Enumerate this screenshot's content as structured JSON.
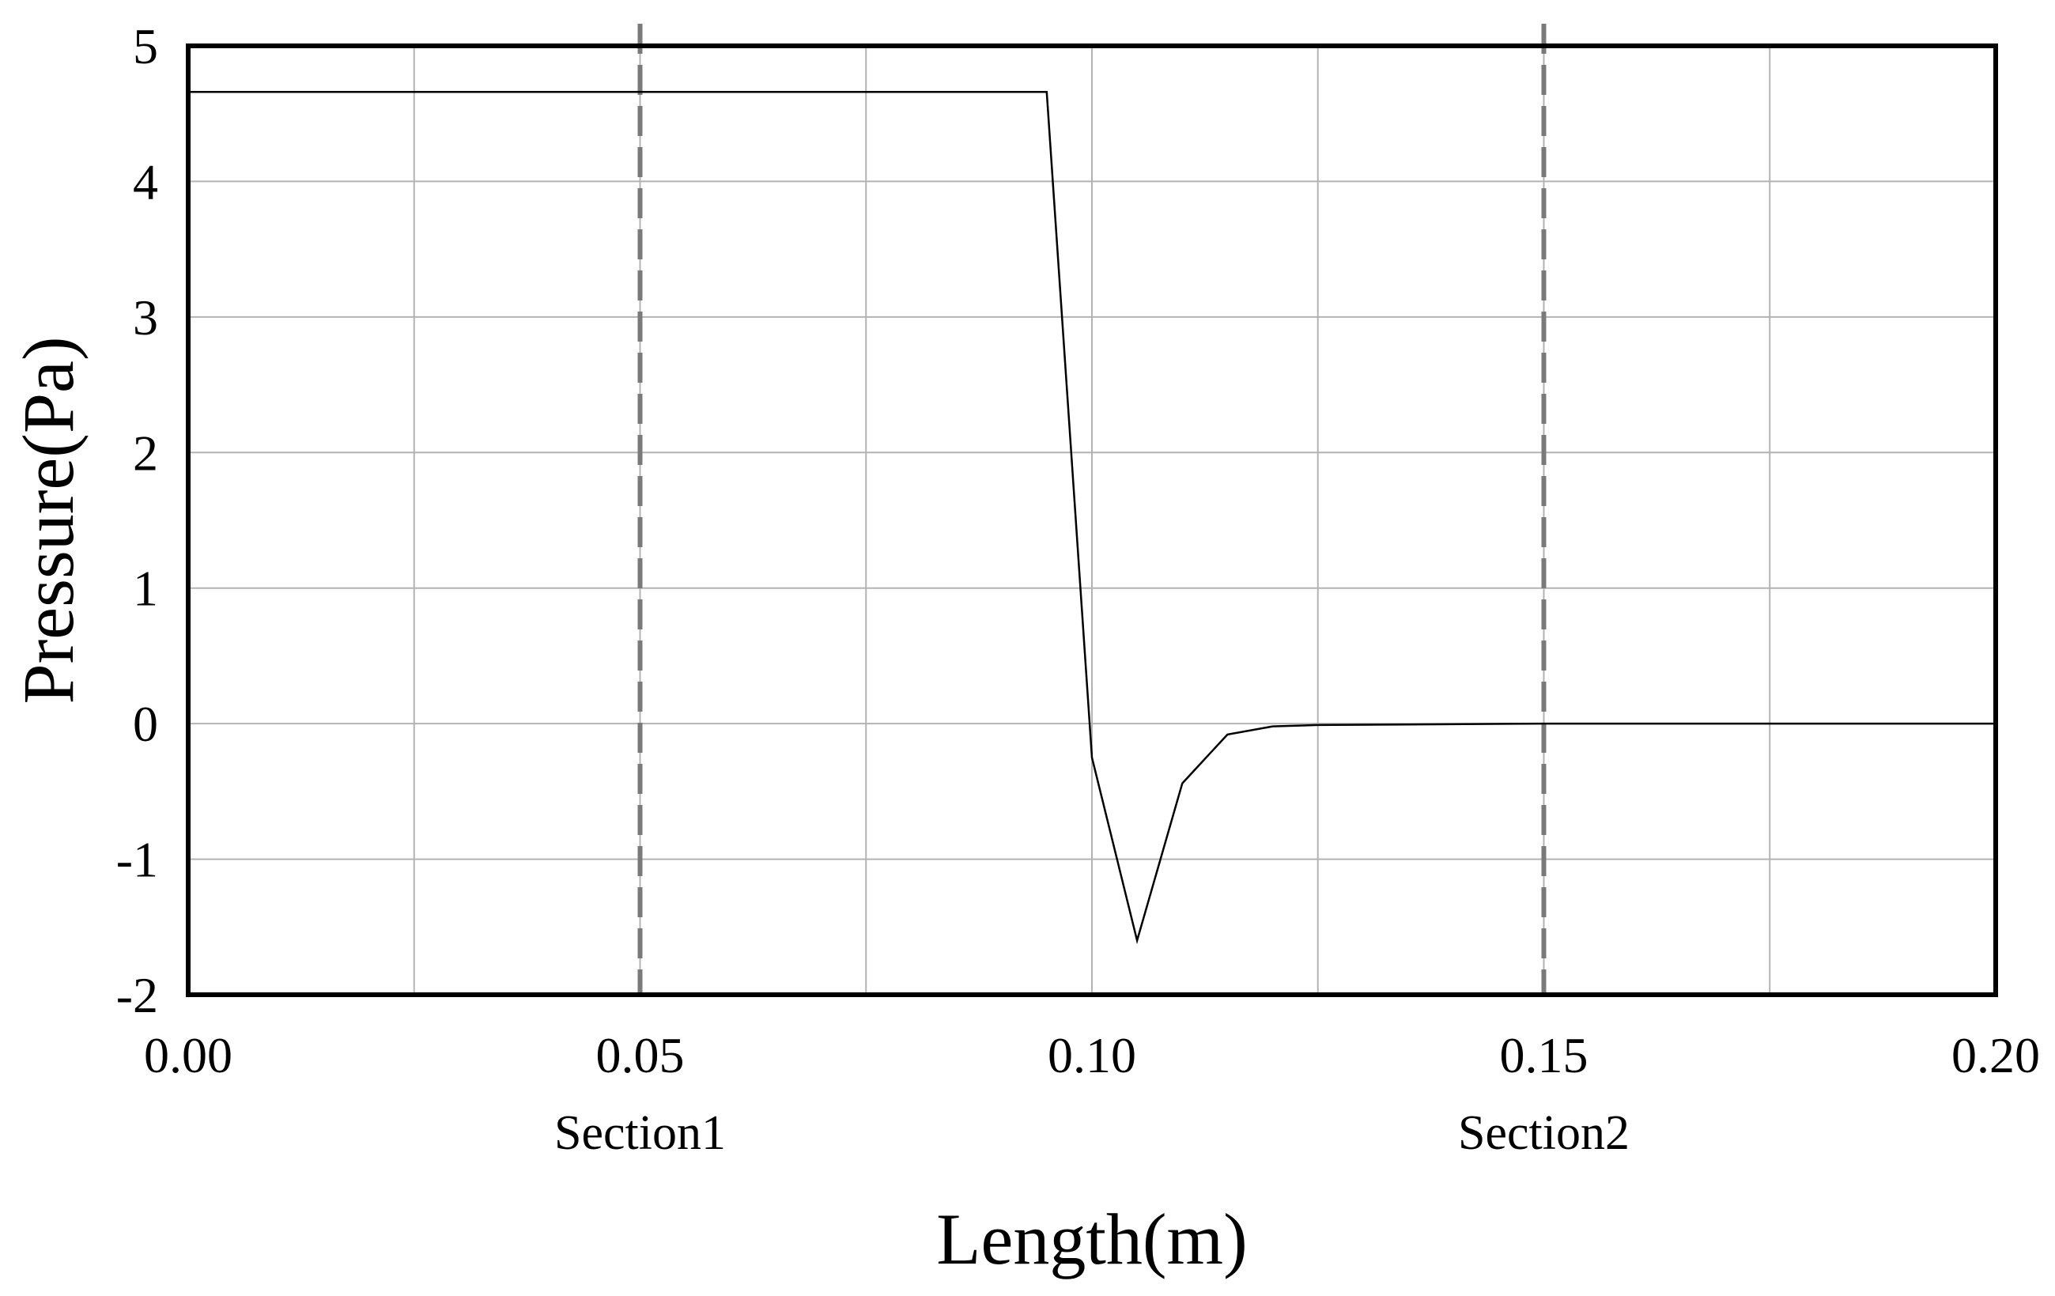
{
  "chart_data": {
    "type": "line",
    "xlabel": "Length(m)",
    "ylabel": "Pressure(Pa)",
    "xlim": [
      0.0,
      0.2
    ],
    "ylim": [
      -2,
      5
    ],
    "x_ticks": [
      "0.00",
      "0.05",
      "0.10",
      "0.15",
      "0.20"
    ],
    "x_tick_values": [
      0.0,
      0.05,
      0.1,
      0.15,
      0.2
    ],
    "y_ticks": [
      "5",
      "4",
      "3",
      "2",
      "1",
      "0",
      "-1",
      "-2"
    ],
    "y_tick_values": [
      5,
      4,
      3,
      2,
      1,
      0,
      -1,
      -2
    ],
    "x_grid": [
      0.0,
      0.025,
      0.05,
      0.075,
      0.1,
      0.125,
      0.15,
      0.175,
      0.2
    ],
    "y_grid": [
      5,
      4,
      3,
      2,
      1,
      0,
      -1,
      -2
    ],
    "grid": true,
    "series": [
      {
        "x": [
          0.0,
          0.095,
          0.1,
          0.105,
          0.11,
          0.115,
          0.12,
          0.125,
          0.15,
          0.175,
          0.2
        ],
        "y": [
          4.66,
          4.66,
          -0.25,
          -1.6,
          -0.44,
          -0.08,
          -0.02,
          -0.01,
          0.0,
          0.0,
          0.0
        ]
      }
    ],
    "annotations": [
      {
        "x": 0.05,
        "label": "Section1",
        "style": "dashed-vertical"
      },
      {
        "x": 0.15,
        "label": "Section2",
        "style": "dashed-vertical"
      }
    ]
  }
}
